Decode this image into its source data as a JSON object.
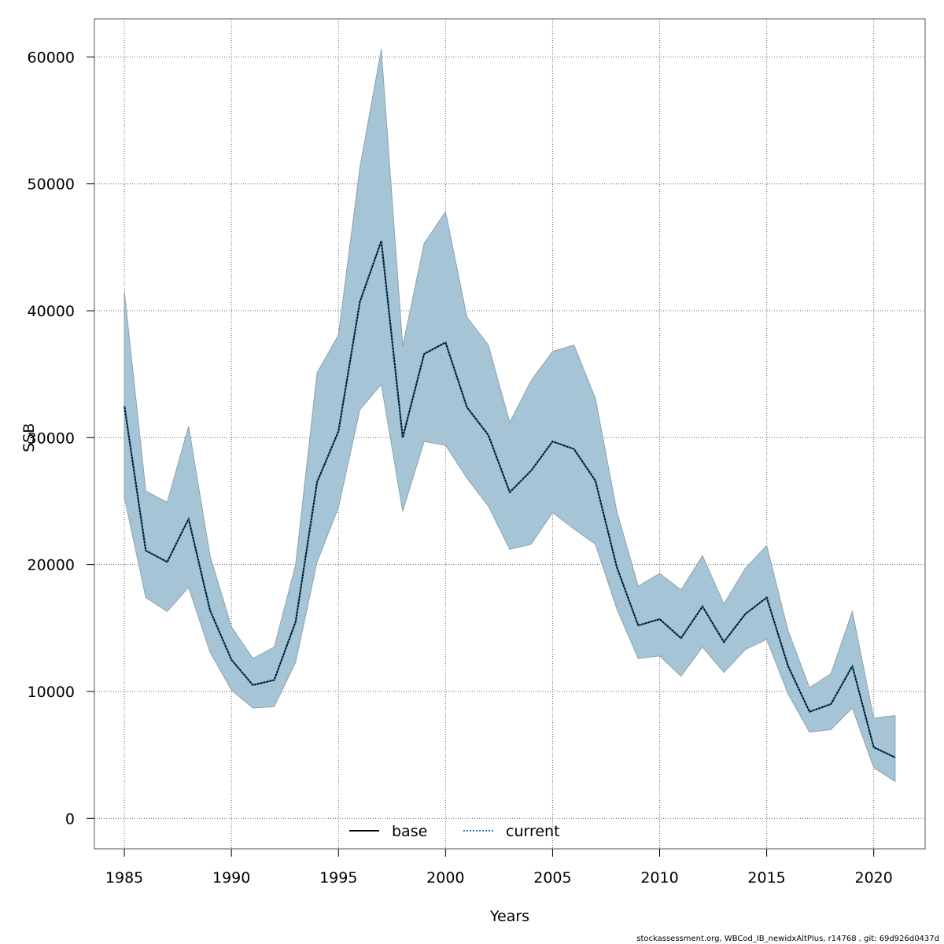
{
  "chart_data": {
    "type": "line",
    "title": "",
    "xlabel": "Years",
    "ylabel": "SSB",
    "xlim": [
      1983.6,
      1985.0,
      2022.4
    ],
    "ylim": [
      -2400,
      63000
    ],
    "x_ticks": [
      1985,
      1990,
      1995,
      2000,
      2005,
      2010,
      2015,
      2020
    ],
    "y_ticks": [
      0,
      10000,
      20000,
      30000,
      40000,
      50000,
      60000
    ],
    "grid": true,
    "legend_position": "bottom-center",
    "x": [
      1985,
      1986,
      1987,
      1988,
      1989,
      1990,
      1991,
      1992,
      1993,
      1994,
      1995,
      1996,
      1997,
      1998,
      1999,
      2000,
      2001,
      2002,
      2003,
      2004,
      2005,
      2006,
      2007,
      2008,
      2009,
      2010,
      2011,
      2012,
      2013,
      2014,
      2015,
      2016,
      2017,
      2018,
      2019,
      2020,
      2021
    ],
    "series": [
      {
        "name": "base",
        "style": "solid",
        "color": "#000000",
        "values": [
          32500,
          21100,
          20200,
          23600,
          16400,
          12500,
          10500,
          10900,
          15500,
          26500,
          30500,
          40700,
          45500,
          30000,
          36600,
          37500,
          32400,
          30200,
          25700,
          27400,
          29700,
          29100,
          26600,
          19800,
          15200,
          15700,
          14200,
          16700,
          13900,
          16100,
          17400,
          12000,
          8400,
          9000,
          12000,
          5600,
          4800
        ]
      },
      {
        "name": "current",
        "style": "dotted",
        "color": "#1f6fa0",
        "values": [
          32500,
          21100,
          20200,
          23600,
          16400,
          12500,
          10500,
          10900,
          15500,
          26500,
          30500,
          40700,
          45500,
          30000,
          36600,
          37500,
          32400,
          30200,
          25700,
          27400,
          29700,
          29100,
          26600,
          19800,
          15200,
          15700,
          14200,
          16700,
          13900,
          16100,
          17400,
          12000,
          8400,
          9000,
          12000,
          5600,
          4800
        ]
      }
    ],
    "confidence_band": {
      "color": "#a5c4d6",
      "lower": [
        25300,
        17400,
        16300,
        18200,
        13100,
        10100,
        8700,
        8800,
        12300,
        20200,
        24500,
        32200,
        34200,
        24200,
        29700,
        29400,
        26800,
        24600,
        21200,
        21600,
        24100,
        22800,
        21600,
        16500,
        12600,
        12800,
        11200,
        13500,
        11500,
        13300,
        14100,
        9800,
        6800,
        7000,
        8700,
        4000,
        2900
      ],
      "upper": [
        41500,
        25800,
        24900,
        30900,
        20700,
        15100,
        12600,
        13500,
        20000,
        35100,
        38100,
        51300,
        60600,
        37200,
        45300,
        47800,
        39500,
        37300,
        31200,
        34500,
        36800,
        37300,
        33100,
        24200,
        18300,
        19300,
        18000,
        20700,
        16900,
        19700,
        21500,
        14800,
        10300,
        11400,
        16300,
        7900,
        8100
      ]
    }
  },
  "legend": {
    "items": [
      {
        "label": "base",
        "style": "solid",
        "color": "#000000"
      },
      {
        "label": "current",
        "style": "dotted",
        "color": "#1f6fa0"
      }
    ]
  },
  "footer": {
    "text": "stockassessment.org, WBCod_IB_newidxAltPlus, r14768 , git: 69d926d0437d"
  }
}
